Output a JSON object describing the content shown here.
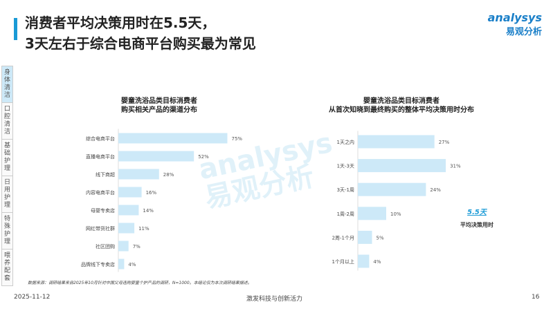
{
  "header": {
    "title_line1": "消费者平均决策用时在5.5天，",
    "title_line2": "3天左右于综合电商平台购买最为常见"
  },
  "logo": {
    "en": "analysys",
    "cn": "易观分析"
  },
  "sidebar": {
    "items": [
      {
        "label": "身体清洁",
        "active": true
      },
      {
        "label": "口腔清洁"
      },
      {
        "label": "基础护理"
      },
      {
        "label": "日用护理"
      },
      {
        "label": "特殊护理"
      },
      {
        "label": "喂养配套"
      }
    ]
  },
  "colors": {
    "bar": "#cde9f8",
    "accent": "#1a9ad6"
  },
  "chart_data": [
    {
      "type": "bar",
      "orientation": "horizontal",
      "title": "婴童洗浴品类目标消费者\n购买相关产品的渠道分布",
      "categories": [
        "综合电商平台",
        "直播电商平台",
        "线下商超",
        "内容电商平台",
        "母婴专卖店",
        "网红带货社群",
        "社区团购",
        "品牌线下专卖店"
      ],
      "values": [
        75,
        52,
        28,
        16,
        14,
        11,
        7,
        4
      ],
      "unit": "%"
    },
    {
      "type": "bar",
      "orientation": "horizontal",
      "title": "婴童洗浴品类目标消费者\n从首次知晓到最终购买的整体平均决策用时分布",
      "categories": [
        "1天之内",
        "1天-3天",
        "3天-1周",
        "1周-2周",
        "2周-1个月",
        "1个月以上"
      ],
      "values": [
        27,
        31,
        24,
        10,
        5,
        4
      ],
      "unit": "%",
      "annotation": {
        "value": "5.5天",
        "label": "平均决策用时"
      }
    }
  ],
  "footer": {
    "source": "数据来源：调研结果来自2025年10月针对中国父母选购婴童个护产品的调研，N=1000。本结论仅为本次调研结果描述。",
    "date": "2025-11-12",
    "slogan": "激发科技与创新活力",
    "page": "16"
  }
}
